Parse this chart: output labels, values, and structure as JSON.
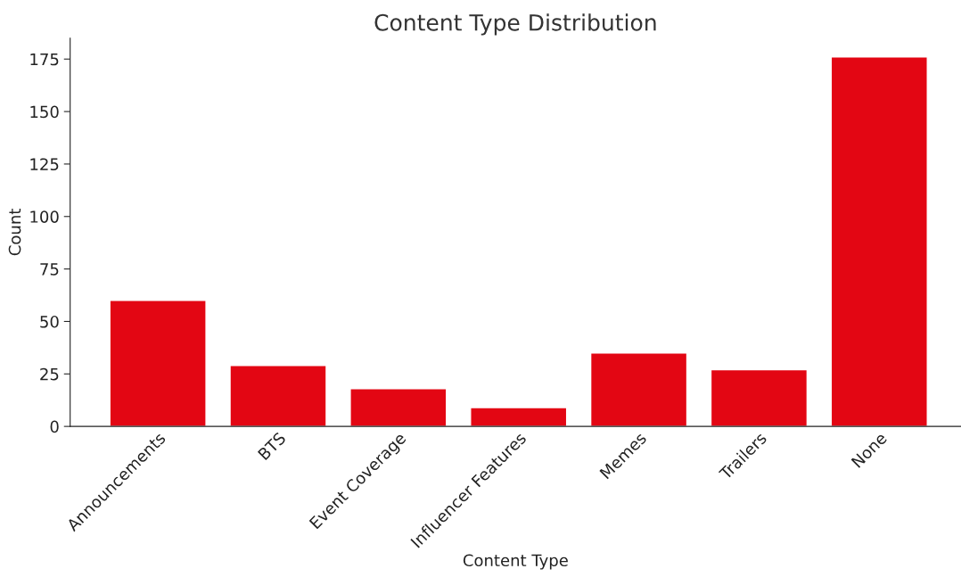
{
  "chart_data": {
    "type": "bar",
    "title": "Content Type Distribution",
    "xlabel": "Content Type",
    "ylabel": "Count",
    "categories": [
      "Announcements",
      "BTS",
      "Event Coverage",
      "Influencer Features",
      "Memes",
      "Trailers",
      "None"
    ],
    "values": [
      60,
      29,
      18,
      9,
      35,
      27,
      176
    ],
    "color": "#e30613",
    "ylim": [
      0,
      185
    ],
    "yticks": [
      0,
      25,
      50,
      75,
      100,
      125,
      150,
      175
    ],
    "grid": false,
    "legend": false
  }
}
